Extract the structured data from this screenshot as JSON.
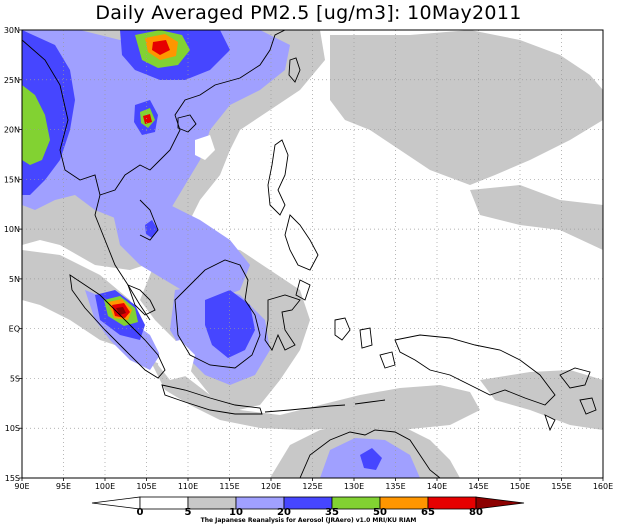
{
  "title": "Daily Averaged PM2.5 [ug/m3]: 10May2011",
  "credit": "The Japanese Reanalysis for Aerosol (JRAero) v1.0 MRI/KU RIAM",
  "axes": {
    "lon_ticks": [
      "90E",
      "95E",
      "100E",
      "105E",
      "110E",
      "115E",
      "120E",
      "125E",
      "130E",
      "135E",
      "140E",
      "145E",
      "150E",
      "155E",
      "160E"
    ],
    "lat_ticks": [
      "30N",
      "25N",
      "20N",
      "15N",
      "10N",
      "5N",
      "EQ",
      "5S",
      "10S",
      "15S"
    ]
  },
  "colorbar": {
    "levels": [
      "0",
      "5",
      "10",
      "20",
      "35",
      "50",
      "65",
      "80"
    ],
    "colors": [
      "#ffffff",
      "#ffffff",
      "#c8c8c8",
      "#a0a0ff",
      "#4646ff",
      "#82d232",
      "#ff9600",
      "#e60000",
      "#8c0000"
    ]
  },
  "map_colors": {
    "land_line": "#000000",
    "grid": "#9a9a9a"
  }
}
